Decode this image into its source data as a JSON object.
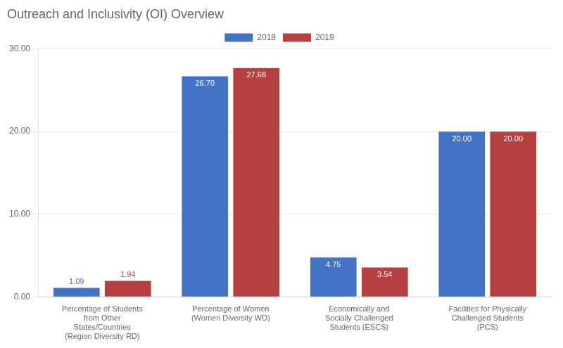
{
  "chart_data": {
    "type": "bar",
    "title": "Outreach and Inclusivity (OI) Overview",
    "categories": [
      "Percentage of Students\nfrom Other\nStates/Countries\n(Region Diversity RD)",
      "Percentage of Women\n(Women Diversity WD)",
      "Economically and\nSocially Challenged\nStudents (ESCS)",
      "Facilities for Physically\nChallenged Students\n(PCS)"
    ],
    "series": [
      {
        "name": "2018",
        "color": "#4472C4",
        "values": [
          1.09,
          26.7,
          4.75,
          20.0
        ],
        "value_labels": [
          "1.09",
          "26.70",
          "4.75",
          "20.00"
        ]
      },
      {
        "name": "2019",
        "color": "#B54040",
        "values": [
          1.94,
          27.68,
          3.54,
          20.0
        ],
        "value_labels": [
          "1.94",
          "27.68",
          "3.54",
          "20.00"
        ]
      }
    ],
    "ylim": [
      0,
      30
    ],
    "yticks": [
      {
        "value": 0,
        "label": "0.00"
      },
      {
        "value": 10,
        "label": "10.00"
      },
      {
        "value": 20,
        "label": "20.00"
      },
      {
        "value": 30,
        "label": "30.00"
      }
    ],
    "grid": true,
    "legend": "top",
    "data_labels": true
  }
}
